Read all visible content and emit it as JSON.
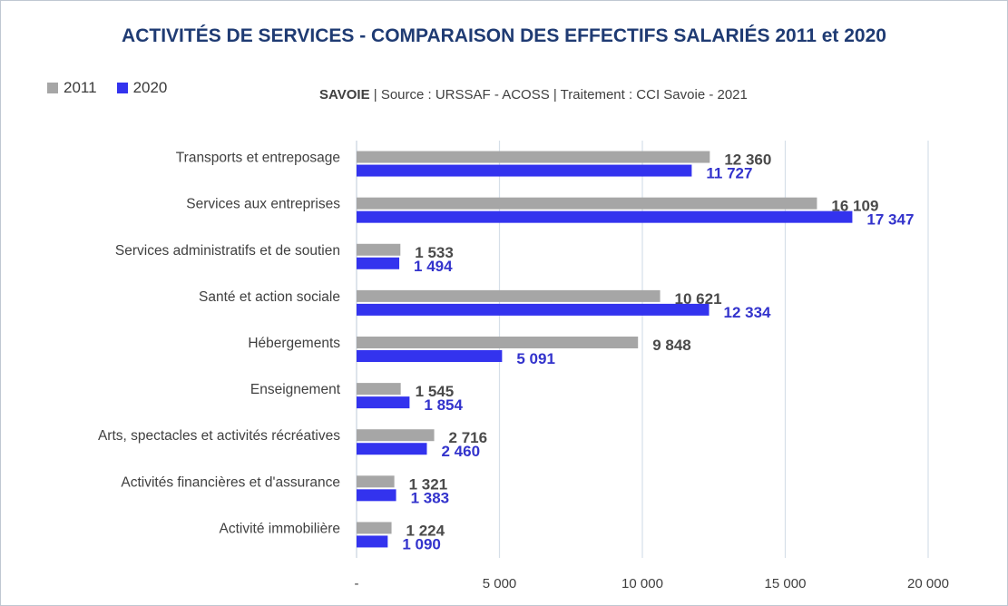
{
  "chart_data": {
    "type": "bar",
    "orientation": "horizontal",
    "title": "ACTIVITÉS DE SERVICES - COMPARAISON DES EFFECTIFS SALARIÉS 2011 et 2020",
    "subtitle": {
      "region": "SAVOIE",
      "rest": "|  Source  : URSSAF - ACOSS  |  Traitement : CCI Savoie - 2021"
    },
    "categories": [
      "Transports et entreposage",
      "Services aux entreprises",
      "Services administratifs et de soutien",
      "Santé et action sociale",
      "Hébergements",
      "Enseignement",
      "Arts, spectacles et activités récréatives",
      "Activités financières et d'assurance",
      "Activité immobilière"
    ],
    "series": [
      {
        "name": "2011",
        "color": "#a6a6a6",
        "label_color": "#4a4a4a",
        "values": [
          12360,
          16109,
          1533,
          10621,
          9848,
          1545,
          2716,
          1321,
          1224
        ],
        "labels": [
          "12 360",
          "16 109",
          "1 533",
          "10 621",
          "9 848",
          "1 545",
          "2 716",
          "1 321",
          "1 224"
        ]
      },
      {
        "name": "2020",
        "color": "#3333ee",
        "label_color": "#3333cc",
        "values": [
          11727,
          17347,
          1494,
          12334,
          5091,
          1854,
          2460,
          1383,
          1090
        ],
        "labels": [
          "11 727",
          "17 347",
          "1 494",
          "12 334",
          "5 091",
          "1 854",
          "2 460",
          "1 383",
          "1 090"
        ]
      }
    ],
    "xlim": [
      0,
      20000
    ],
    "xticks": [
      0,
      5000,
      10000,
      15000,
      20000
    ],
    "xtick_labels": [
      "-",
      "5 000",
      "10 000",
      "15 000",
      "20 000"
    ],
    "grid": true,
    "legend_position": "top-left"
  }
}
